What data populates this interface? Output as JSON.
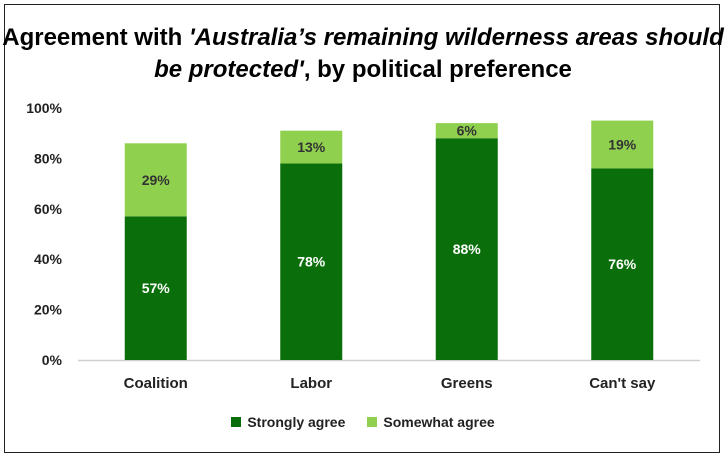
{
  "chart_data": {
    "type": "bar",
    "stacked": true,
    "title_prefix": "Agreement with ",
    "title_italic": "'Australia’s remaining wilderness areas should be protected'",
    "title_suffix": ", by political preference",
    "categories": [
      "Coalition",
      "Labor",
      "Greens",
      "Can't say"
    ],
    "series": [
      {
        "name": "Strongly agree",
        "values": [
          57,
          78,
          88,
          76
        ],
        "color": "#0a6e0a",
        "label_color": "#ffffff"
      },
      {
        "name": "Somewhat agree",
        "values": [
          29,
          13,
          6,
          19
        ],
        "color": "#8fd14f",
        "label_color": "#333333"
      }
    ],
    "ylim": [
      0,
      100
    ],
    "yticks": [
      "0%",
      "20%",
      "40%",
      "60%",
      "80%",
      "100%"
    ],
    "value_suffix": "%",
    "grid": false,
    "legend_position": "bottom"
  }
}
